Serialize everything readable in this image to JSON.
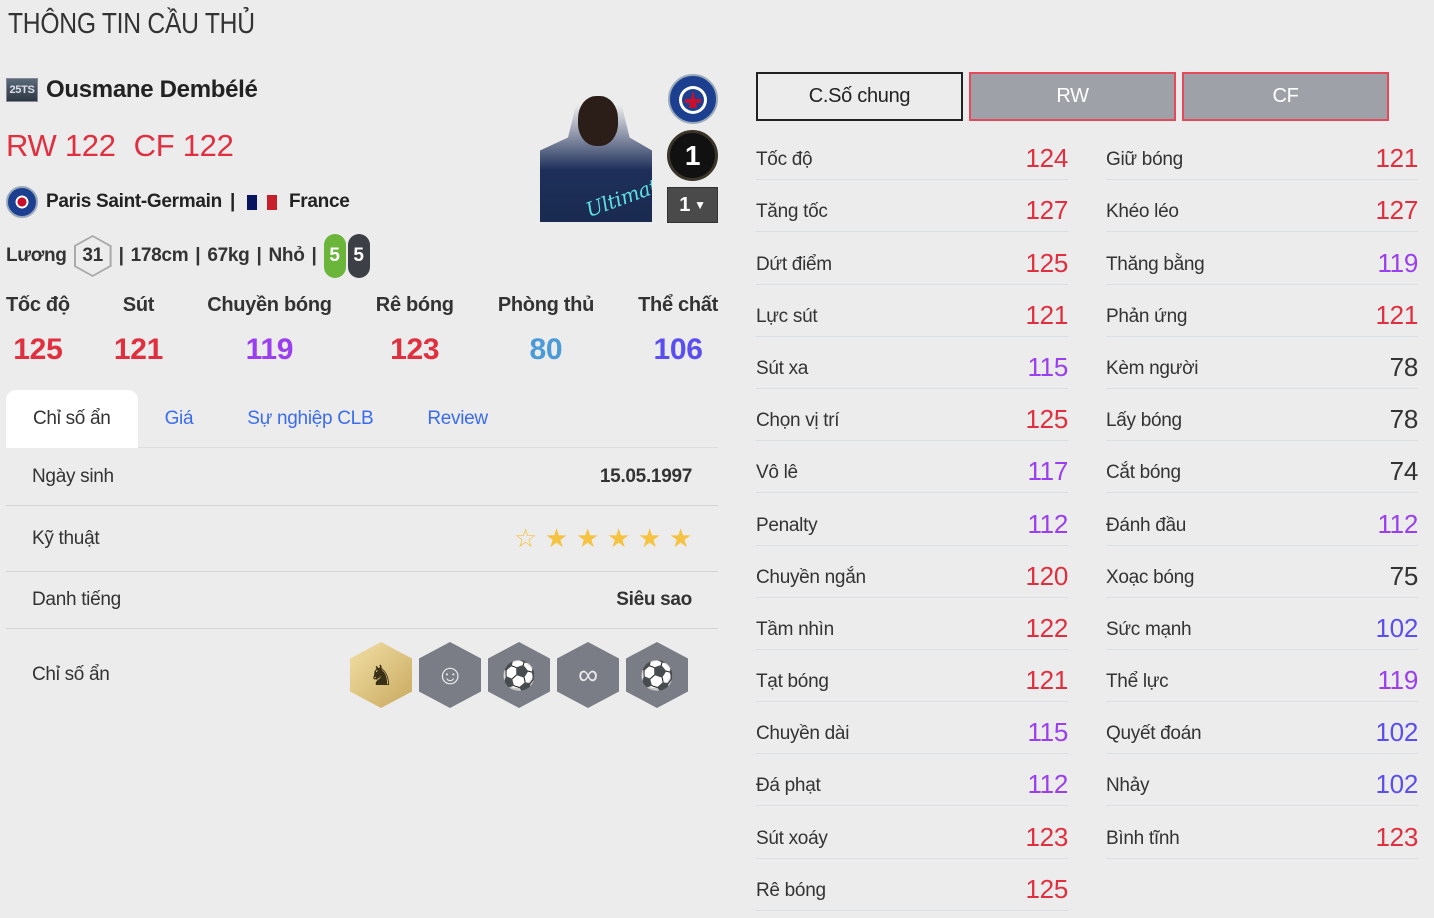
{
  "page_title": "THÔNG TIN CẦU THỦ",
  "player": {
    "season_badge": "25TS",
    "name": "Ousmane Dembélé",
    "ratings": [
      {
        "pos": "RW",
        "val": "122"
      },
      {
        "pos": "CF",
        "val": "122"
      }
    ],
    "club": "Paris Saint-Germain",
    "nation": "France",
    "flag_colors": [
      "#002395",
      "#ffffff",
      "#ed2939"
    ],
    "salary_label": "Lương",
    "salary": "31",
    "height": "178cm",
    "weight": "67kg",
    "body": "Nhỏ",
    "left_foot": "5",
    "right_foot": "5",
    "card_label": "Ultimate",
    "level": "1",
    "level_select": "1"
  },
  "summary": [
    {
      "label": "Tốc độ",
      "value": "125",
      "color": "#e03040"
    },
    {
      "label": "Sút",
      "value": "121",
      "color": "#e03040"
    },
    {
      "label": "Chuyền bóng",
      "value": "119",
      "color": "#9a3ff0"
    },
    {
      "label": "Rê bóng",
      "value": "123",
      "color": "#e03040"
    },
    {
      "label": "Phòng thủ",
      "value": "80",
      "color": "#4a9ad8"
    },
    {
      "label": "Thể chất",
      "value": "106",
      "color": "#5a4ef0"
    }
  ],
  "tabs": [
    "Chỉ số ẩn",
    "Giá",
    "Sự nghiệp CLB",
    "Review"
  ],
  "details": {
    "birth_label": "Ngày sinh",
    "birth": "15.05.1997",
    "skill_label": "Kỹ thuật",
    "skill_stars": 5,
    "skill_stars_max": 6,
    "fame_label": "Danh tiếng",
    "fame": "Siêu sao",
    "traits_label": "Chỉ số ẩn",
    "traits": [
      "knight-horse-icon",
      "star-head-icon",
      "speed-boot-icon",
      "dribble-path-icon",
      "long-shot-icon"
    ]
  },
  "position_tabs": [
    "C.Số chung",
    "RW",
    "CF"
  ],
  "colors": {
    "red": "#e03040",
    "purple": "#9a3ff0",
    "blue": "#5a4ef0",
    "gray": "#333333"
  },
  "stats_left": [
    [
      "Tốc độ",
      "124"
    ],
    [
      "Tăng tốc",
      "127"
    ],
    [
      "Dứt điểm",
      "125"
    ],
    [
      "Lực sút",
      "121"
    ],
    [
      "Sút xa",
      "115"
    ],
    [
      "Chọn vị trí",
      "125"
    ],
    [
      "Vô lê",
      "117"
    ],
    [
      "Penalty",
      "112"
    ],
    [
      "Chuyền ngắn",
      "120"
    ],
    [
      "Tầm nhìn",
      "122"
    ],
    [
      "Tạt bóng",
      "121"
    ],
    [
      "Chuyền dài",
      "115"
    ],
    [
      "Đá phạt",
      "112"
    ],
    [
      "Sút xoáy",
      "123"
    ],
    [
      "Rê bóng",
      "125"
    ]
  ],
  "stats_right": [
    [
      "Giữ bóng",
      "121"
    ],
    [
      "Khéo léo",
      "127"
    ],
    [
      "Thăng bằng",
      "119"
    ],
    [
      "Phản ứng",
      "121"
    ],
    [
      "Kèm người",
      "78"
    ],
    [
      "Lấy bóng",
      "78"
    ],
    [
      "Cắt bóng",
      "74"
    ],
    [
      "Đánh đầu",
      "112"
    ],
    [
      "Xoạc bóng",
      "75"
    ],
    [
      "Sức mạnh",
      "102"
    ],
    [
      "Thể lực",
      "119"
    ],
    [
      "Quyết đoán",
      "102"
    ],
    [
      "Nhảy",
      "102"
    ],
    [
      "Bình tĩnh",
      "123"
    ]
  ]
}
